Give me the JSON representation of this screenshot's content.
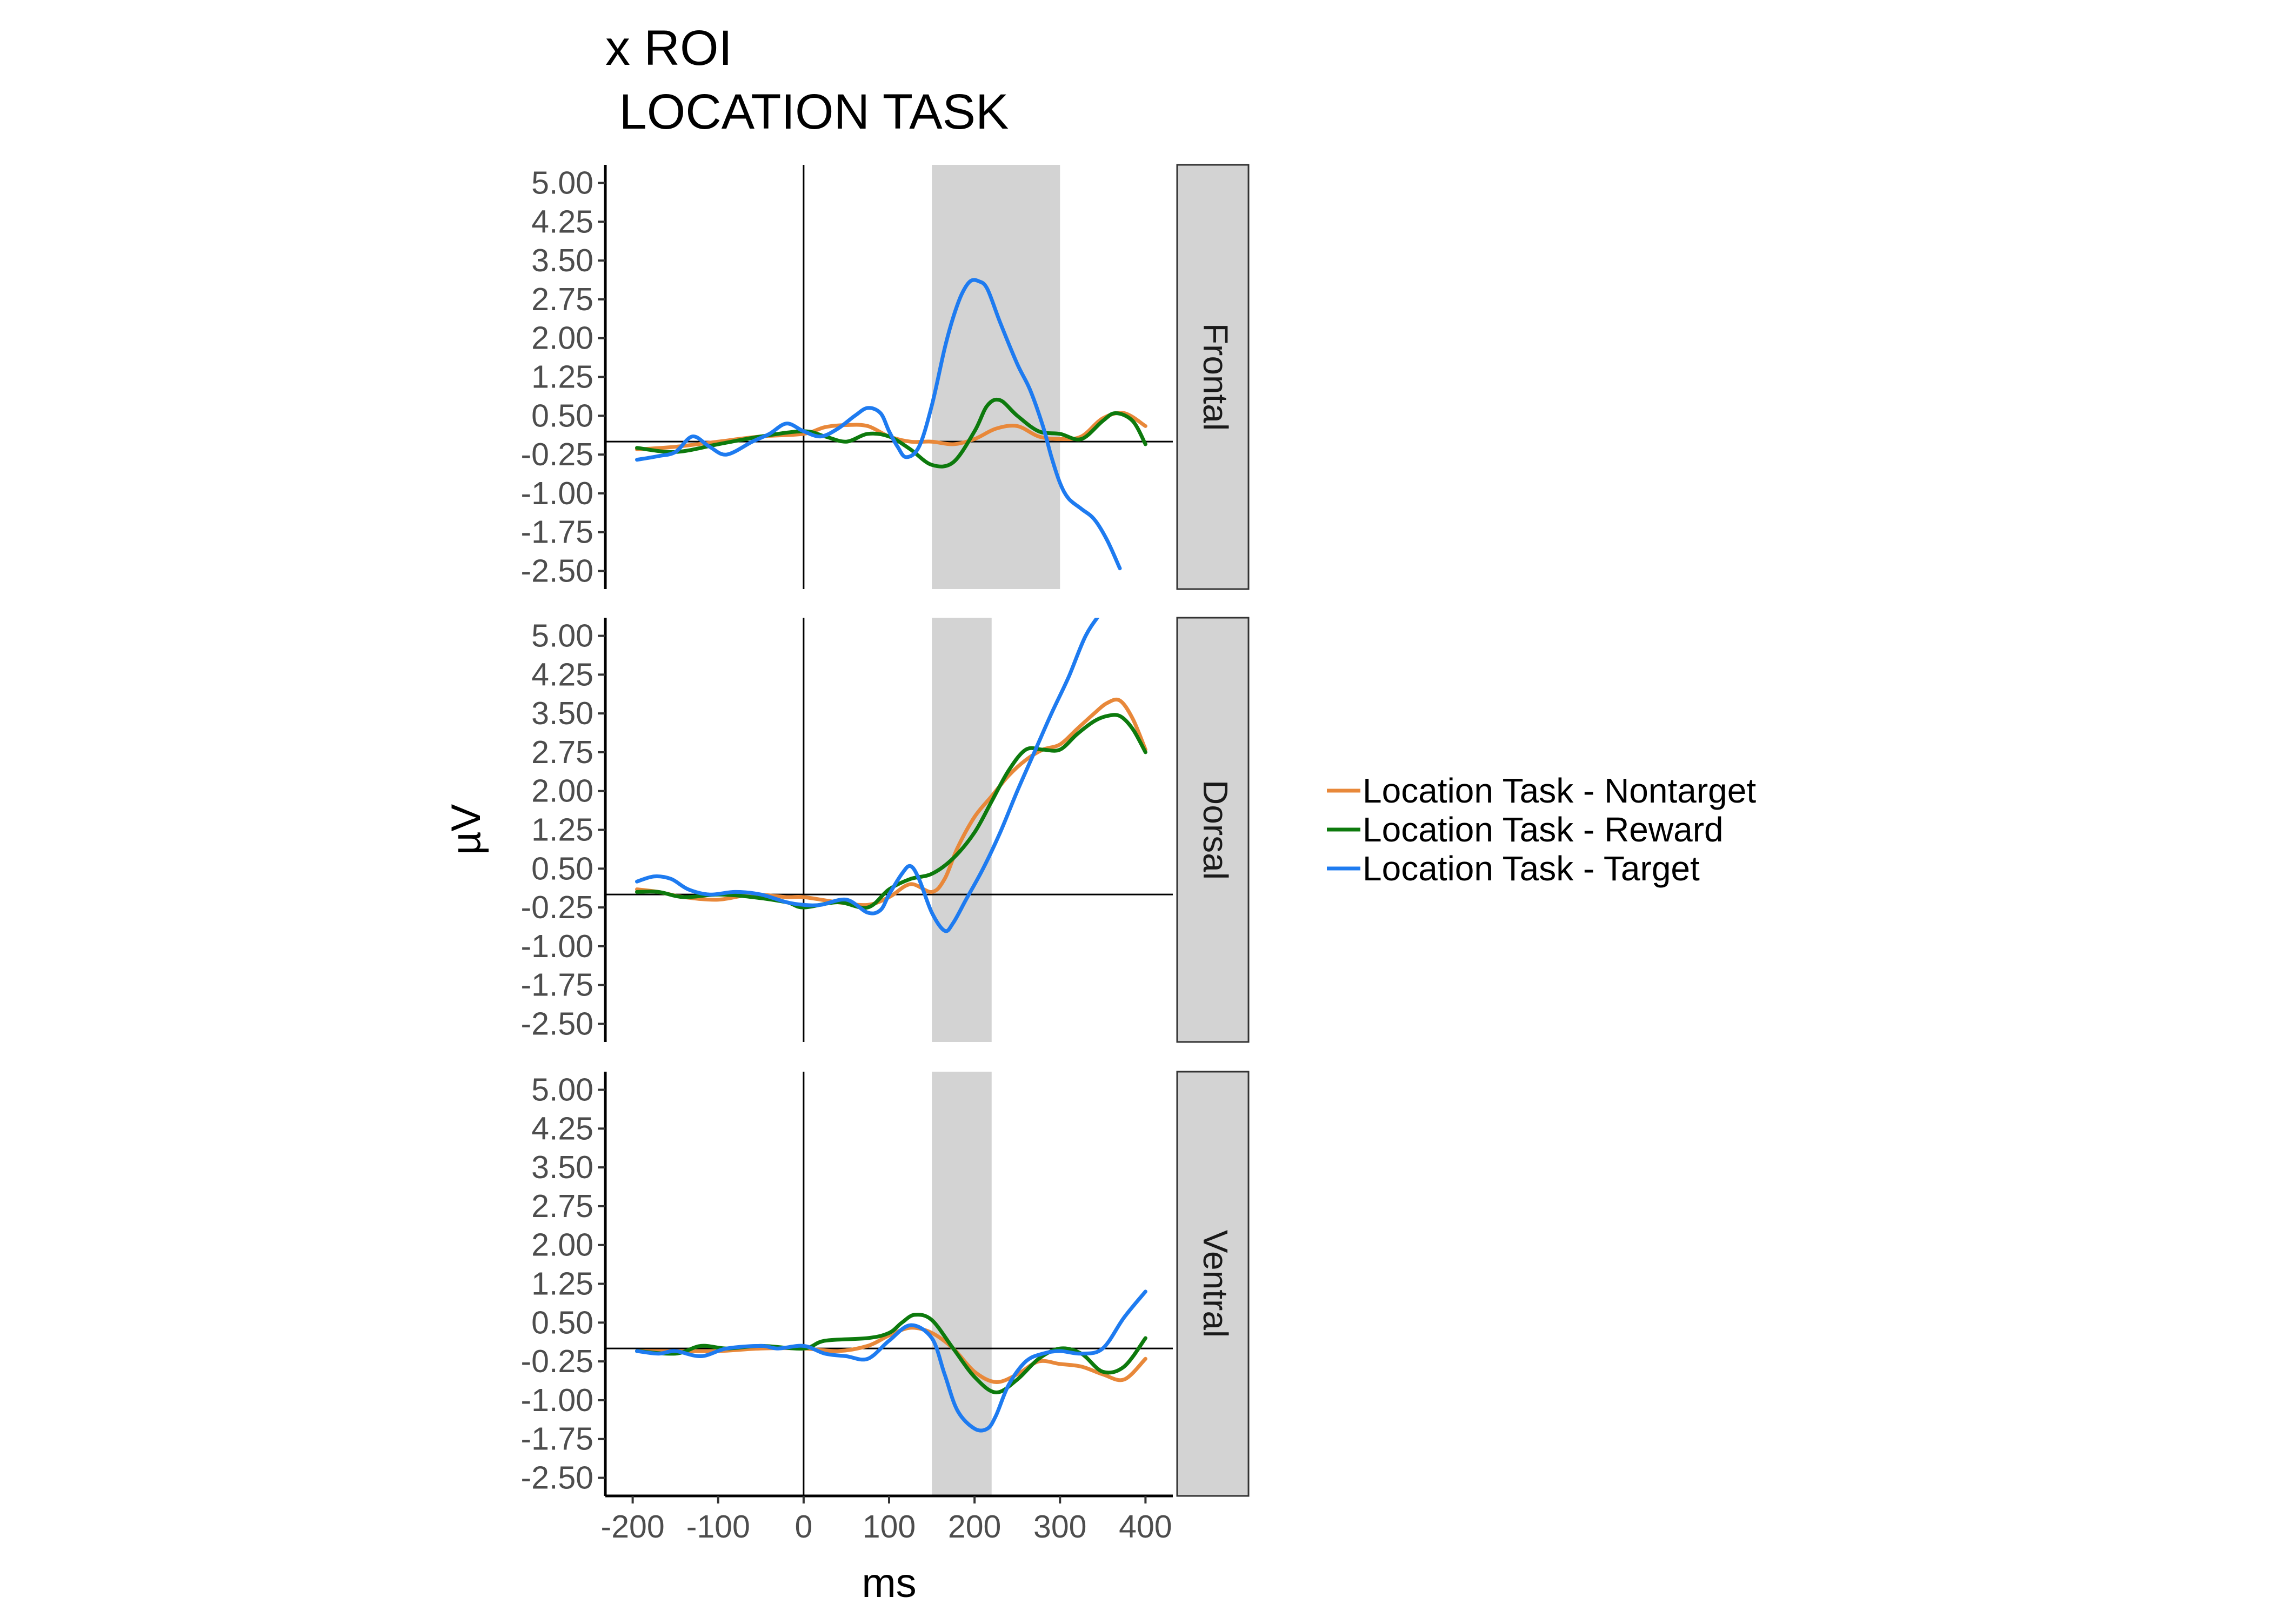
{
  "chart_data": {
    "type": "line",
    "title_lines": [
      "x ROI",
      " LOCATION TASK"
    ],
    "xlabel": "ms",
    "ylabel": "µV",
    "x_ticks": [
      -200,
      -100,
      0,
      100,
      200,
      300,
      400
    ],
    "x_tick_labels": [
      "-200",
      "-100",
      "0",
      "100",
      "200",
      "300",
      "400"
    ],
    "y_ticks": [
      5.0,
      4.25,
      3.5,
      2.75,
      2.0,
      1.25,
      0.5,
      -0.25,
      -1.0,
      -1.75,
      -2.5
    ],
    "y_tick_labels": [
      "5.00",
      "4.25",
      "3.50",
      "2.75",
      "2.00",
      "1.25",
      "0.50",
      "-0.25",
      "-1.00",
      "-1.75",
      "-2.50"
    ],
    "xlim": [
      -232,
      432
    ],
    "ylim": [
      -2.85,
      5.35
    ],
    "reference_lines": {
      "x": 0,
      "y": 0
    },
    "legend": {
      "position": "right",
      "entries": [
        {
          "label": "Location Task - Nontarget",
          "color": "#E8883A"
        },
        {
          "label": "Location Task - Reward",
          "color": "#0D7A0D"
        },
        {
          "label": "Location Task - Target",
          "color": "#1E7BF0"
        }
      ]
    },
    "panels": [
      {
        "label": "Frontal",
        "shaded_window": [
          150,
          300
        ],
        "series": [
          {
            "name": "Location Task - Nontarget",
            "color": "#E8883A",
            "x": [
              -195,
              -150,
              -100,
              -50,
              0,
              25,
              50,
              75,
              100,
              125,
              150,
              175,
              200,
              225,
              250,
              275,
              300,
              325,
              350,
              375,
              400
            ],
            "y": [
              -0.15,
              -0.1,
              0.0,
              0.1,
              0.15,
              0.28,
              0.32,
              0.3,
              0.1,
              0.0,
              0.0,
              -0.05,
              0.05,
              0.25,
              0.3,
              0.1,
              0.05,
              0.1,
              0.45,
              0.55,
              0.3
            ]
          },
          {
            "name": "Location Task - Reward",
            "color": "#0D7A0D",
            "x": [
              -195,
              -150,
              -100,
              -50,
              0,
              25,
              50,
              75,
              100,
              125,
              150,
              175,
              200,
              215,
              230,
              250,
              275,
              300,
              325,
              350,
              365,
              385,
              400
            ],
            "y": [
              -0.12,
              -0.2,
              -0.05,
              0.1,
              0.2,
              0.1,
              0.0,
              0.15,
              0.1,
              -0.15,
              -0.45,
              -0.4,
              0.2,
              0.7,
              0.8,
              0.5,
              0.2,
              0.15,
              0.05,
              0.4,
              0.55,
              0.4,
              -0.05
            ]
          },
          {
            "name": "Location Task - Target",
            "color": "#1E7BF0",
            "x": [
              -195,
              -170,
              -150,
              -130,
              -110,
              -90,
              -60,
              -40,
              -20,
              0,
              20,
              40,
              60,
              75,
              90,
              100,
              110,
              120,
              135,
              150,
              165,
              175,
              185,
              195,
              205,
              215,
              230,
              250,
              265,
              280,
              290,
              300,
              310,
              325,
              340,
              355,
              370
            ],
            "y": [
              -0.35,
              -0.28,
              -0.2,
              0.1,
              -0.1,
              -0.25,
              0.0,
              0.15,
              0.35,
              0.2,
              0.1,
              0.25,
              0.5,
              0.65,
              0.55,
              0.2,
              -0.1,
              -0.3,
              -0.1,
              0.7,
              1.8,
              2.4,
              2.85,
              3.1,
              3.1,
              2.95,
              2.3,
              1.5,
              1.0,
              0.3,
              -0.3,
              -0.8,
              -1.1,
              -1.3,
              -1.5,
              -1.9,
              -2.45
            ]
          }
        ]
      },
      {
        "label": "Dorsal",
        "shaded_window": [
          150,
          220
        ],
        "series": [
          {
            "name": "Location Task - Nontarget",
            "color": "#E8883A",
            "x": [
              -195,
              -170,
              -140,
              -100,
              -60,
              -20,
              0,
              40,
              75,
              100,
              125,
              150,
              165,
              180,
              200,
              220,
              240,
              260,
              280,
              300,
              320,
              340,
              355,
              370,
              385,
              400
            ],
            "y": [
              0.1,
              0.05,
              -0.05,
              -0.1,
              0.0,
              -0.05,
              -0.05,
              -0.15,
              -0.2,
              -0.05,
              0.2,
              0.05,
              0.3,
              0.9,
              1.5,
              1.9,
              2.3,
              2.6,
              2.8,
              2.9,
              3.2,
              3.5,
              3.7,
              3.75,
              3.4,
              2.8
            ]
          },
          {
            "name": "Location Task - Reward",
            "color": "#0D7A0D",
            "x": [
              -195,
              -170,
              -140,
              -100,
              -60,
              -20,
              0,
              40,
              75,
              100,
              125,
              150,
              175,
              200,
              220,
              240,
              260,
              280,
              300,
              320,
              340,
              355,
              370,
              385,
              400
            ],
            "y": [
              0.05,
              0.05,
              -0.05,
              0.0,
              -0.05,
              -0.15,
              -0.25,
              -0.15,
              -0.25,
              0.1,
              0.3,
              0.4,
              0.7,
              1.2,
              1.8,
              2.4,
              2.8,
              2.8,
              2.8,
              3.1,
              3.35,
              3.45,
              3.45,
              3.2,
              2.75
            ]
          },
          {
            "name": "Location Task - Target",
            "color": "#1E7BF0",
            "x": [
              -195,
              -175,
              -155,
              -135,
              -110,
              -80,
              -50,
              -20,
              0,
              20,
              50,
              75,
              90,
              100,
              115,
              125,
              135,
              150,
              165,
              175,
              190,
              210,
              230,
              250,
              270,
              290,
              310,
              330,
              350,
              370
            ],
            "y": [
              0.25,
              0.35,
              0.3,
              0.1,
              0.0,
              0.05,
              0.0,
              -0.15,
              -0.2,
              -0.2,
              -0.1,
              -0.35,
              -0.3,
              0.0,
              0.4,
              0.55,
              0.3,
              -0.35,
              -0.7,
              -0.55,
              -0.1,
              0.5,
              1.2,
              2.0,
              2.75,
              3.5,
              4.2,
              5.0,
              5.5,
              6.0
            ]
          }
        ]
      },
      {
        "label": "Ventral",
        "shaded_window": [
          150,
          220
        ],
        "series": [
          {
            "name": "Location Task - Nontarget",
            "color": "#E8883A",
            "x": [
              -195,
              -150,
              -100,
              -50,
              0,
              40,
              75,
              100,
              125,
              150,
              175,
              200,
              225,
              250,
              275,
              300,
              325,
              350,
              375,
              400
            ],
            "y": [
              -0.05,
              -0.05,
              -0.05,
              0.0,
              0.0,
              -0.05,
              0.05,
              0.25,
              0.4,
              0.3,
              0.0,
              -0.45,
              -0.65,
              -0.5,
              -0.25,
              -0.3,
              -0.35,
              -0.5,
              -0.6,
              -0.2
            ]
          },
          {
            "name": "Location Task - Reward",
            "color": "#0D7A0D",
            "x": [
              -195,
              -150,
              -120,
              -90,
              -50,
              0,
              25,
              75,
              100,
              115,
              130,
              150,
              175,
              200,
              225,
              250,
              275,
              300,
              325,
              350,
              375,
              400
            ],
            "y": [
              -0.05,
              -0.1,
              0.05,
              0.0,
              0.05,
              0.0,
              0.15,
              0.2,
              0.3,
              0.5,
              0.65,
              0.55,
              0.0,
              -0.55,
              -0.85,
              -0.6,
              -0.2,
              0.0,
              -0.1,
              -0.45,
              -0.35,
              0.2
            ]
          },
          {
            "name": "Location Task - Target",
            "color": "#1E7BF0",
            "x": [
              -195,
              -170,
              -150,
              -120,
              -90,
              -50,
              -30,
              0,
              25,
              50,
              75,
              100,
              125,
              150,
              165,
              180,
              200,
              215,
              225,
              240,
              260,
              280,
              300,
              325,
              350,
              375,
              400
            ],
            "y": [
              -0.05,
              -0.1,
              -0.05,
              -0.15,
              0.0,
              0.05,
              0.0,
              0.05,
              -0.1,
              -0.15,
              -0.2,
              0.15,
              0.45,
              0.2,
              -0.5,
              -1.2,
              -1.55,
              -1.55,
              -1.3,
              -0.7,
              -0.25,
              -0.1,
              -0.05,
              -0.1,
              0.0,
              0.6,
              1.1
            ]
          }
        ]
      }
    ]
  }
}
